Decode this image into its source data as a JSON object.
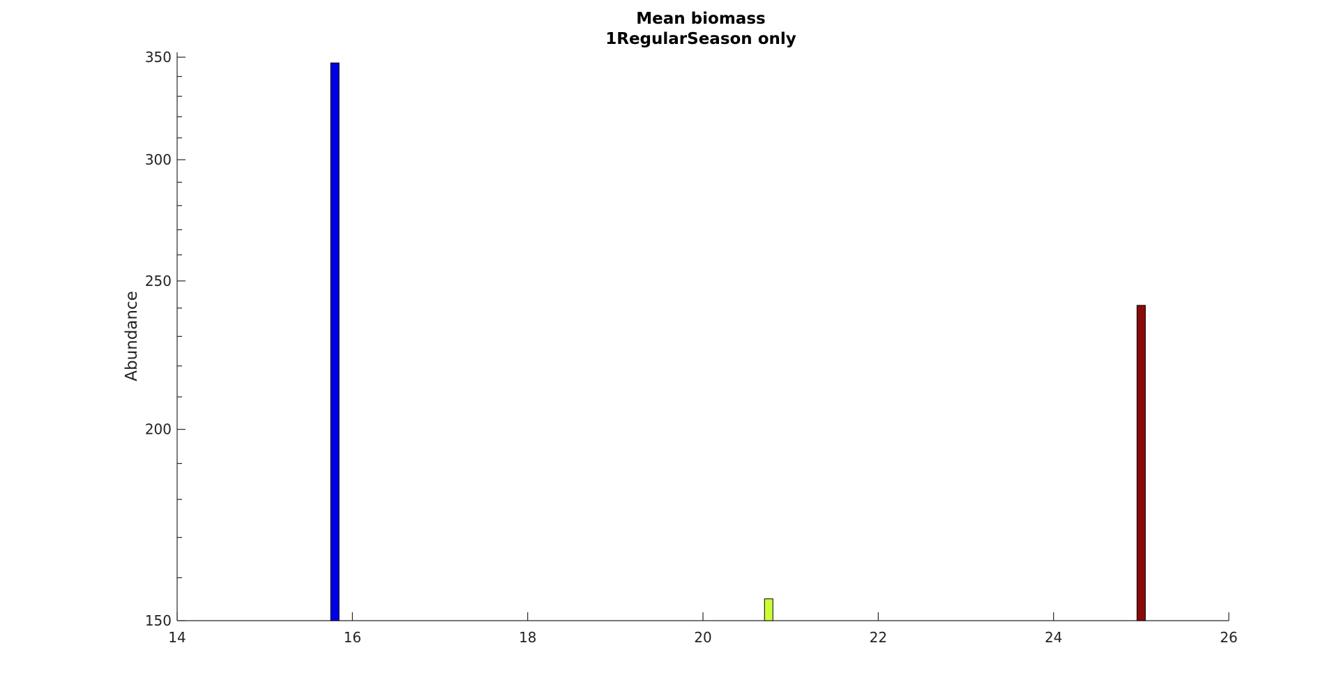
{
  "chart_data": {
    "type": "bar",
    "title": [
      "Mean biomass",
      "1RegularSeason only"
    ],
    "xlabel": "",
    "ylabel": "Abundance",
    "xlim": [
      14,
      26
    ],
    "ylim": [
      150,
      350
    ],
    "yscale": "log",
    "x_ticks": [
      14,
      16,
      18,
      20,
      22,
      24,
      26
    ],
    "y_ticks": [
      150,
      200,
      250,
      300,
      350
    ],
    "grid": false,
    "bars": [
      {
        "x": 15.8,
        "value": 347,
        "color": "#0000e6"
      },
      {
        "x": 20.75,
        "value": 155,
        "color": "#ccff33"
      },
      {
        "x": 25.0,
        "value": 241,
        "color": "#8b0a0a"
      }
    ]
  }
}
